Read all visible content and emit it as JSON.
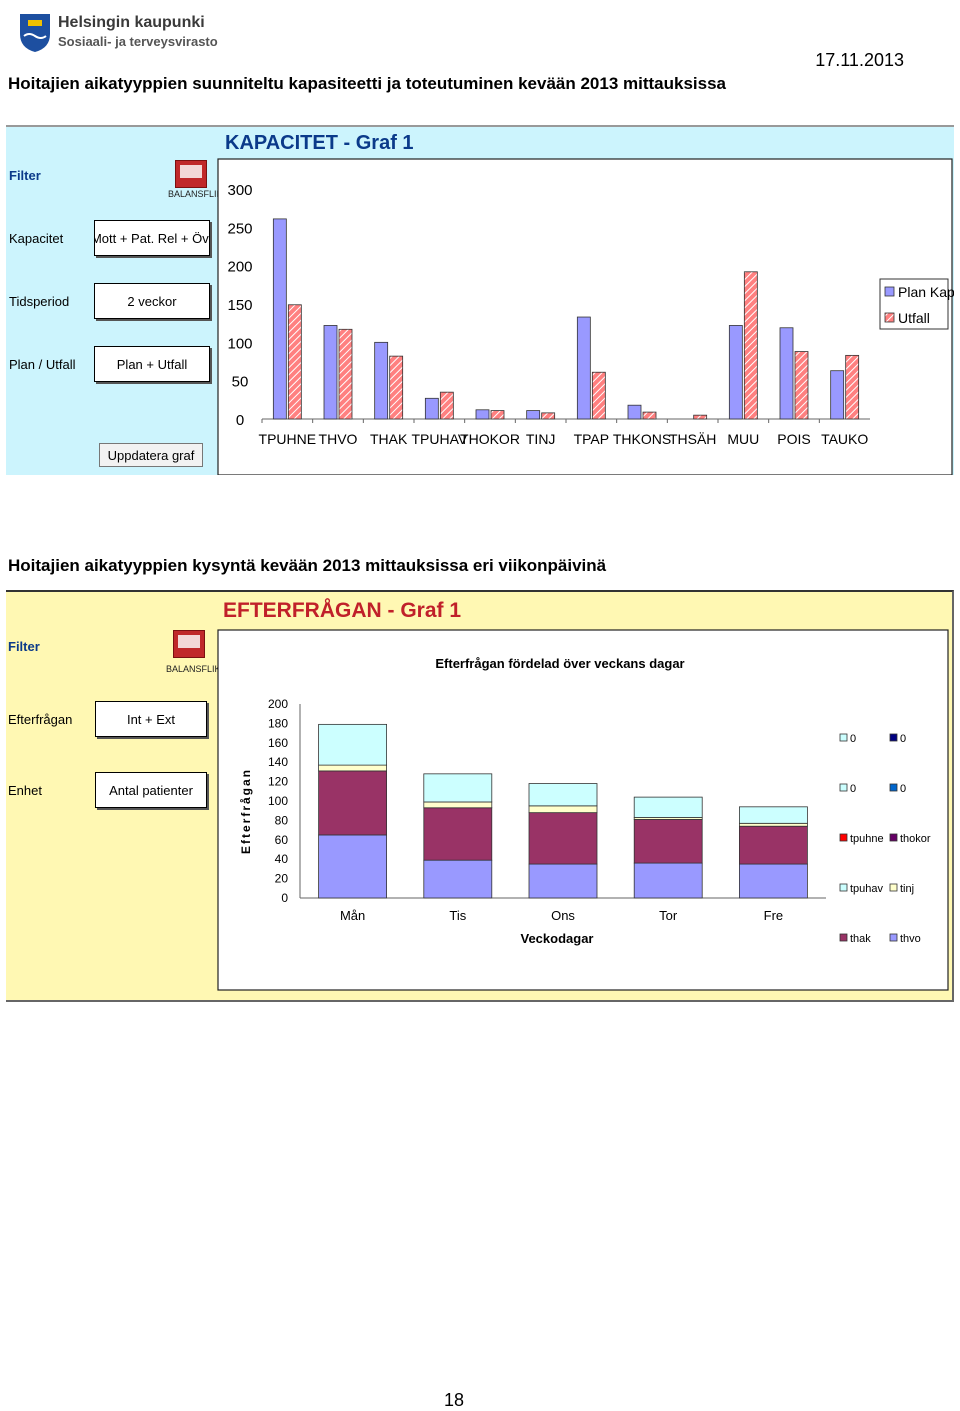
{
  "header": {
    "logo_line1": "Helsingin kaupunki",
    "logo_line2": "Sosiaali- ja terveysvirasto",
    "date": "17.11.2013",
    "title1": "Hoitajien aikatyyppien suunniteltu kapasiteetti ja toteutuminen kevään 2013 mittauksissa",
    "title2": "Hoitajien aikatyyppien kysyntä kevään 2013 mittauksissa eri viikonpäivinä"
  },
  "panel1": {
    "filter_label": "Filter",
    "balansflik": "BALANSFLIK",
    "rows": [
      {
        "label": "Kapacitet",
        "value": "Mott + Pat. Rel + Övr"
      },
      {
        "label": "Tidsperiod",
        "value": "2 veckor"
      },
      {
        "label": "Plan / Utfall",
        "value": "Plan + Utfall"
      }
    ],
    "update_button": "Uppdatera graf",
    "chart_title": "KAPACITET - Graf 1"
  },
  "panel2": {
    "filter_label": "Filter",
    "balansflik": "BALANSFLIK",
    "rows": [
      {
        "label": "Efterfrågan",
        "value": "Int + Ext"
      },
      {
        "label": "Enhet",
        "value": "Antal patienter"
      }
    ],
    "chart_title": "EFTERFRÅGAN - Graf 1"
  },
  "page_number": "18",
  "colors": {
    "plan_kap": "#9999ff",
    "utfall": "#ff8080",
    "panel1_bg": "#ccf4fd",
    "panel2_bg": "#fff8b3"
  },
  "chart_data": [
    {
      "type": "bar",
      "categories": [
        "TPUHNE",
        "THVO",
        "THAK",
        "TPUHAV",
        "THOKOR",
        "TINJ",
        "TPAP",
        "THKONS",
        "THSÄH",
        "MUU",
        "POIS",
        "TAUKO"
      ],
      "series": [
        {
          "name": "Plan Kap",
          "values": [
            261,
            122,
            100,
            27,
            12,
            11,
            133,
            18,
            0,
            122,
            119,
            63
          ]
        },
        {
          "name": "Utfall",
          "values": [
            149,
            117,
            82,
            35,
            11,
            8,
            61,
            9,
            5,
            192,
            88,
            83
          ]
        }
      ],
      "yticks": [
        "0",
        "50",
        "100",
        "150",
        "200",
        "250",
        "300"
      ],
      "ylim": [
        0,
        300
      ],
      "legend": "right"
    },
    {
      "type": "bar",
      "stacked": true,
      "title": "Efterfrågan fördelad över veckans dagar",
      "xlabel": "Veckodagar",
      "ylabel": "Efterfrågan",
      "categories": [
        "Mån",
        "Tis",
        "Ons",
        "Tor",
        "Fre"
      ],
      "yticks": [
        "0",
        "20",
        "40",
        "60",
        "80",
        "100",
        "120",
        "140",
        "160",
        "180",
        "200"
      ],
      "ylim": [
        0,
        200
      ],
      "series": [
        {
          "name": "thvo",
          "color": "#9999ff",
          "values": [
            65,
            39,
            35,
            36,
            35
          ]
        },
        {
          "name": "thak",
          "color": "#993366",
          "values": [
            66,
            54,
            53,
            45,
            39
          ]
        },
        {
          "name": "tinj",
          "color": "#ffffcc",
          "values": [
            6,
            6,
            7,
            2,
            3
          ]
        },
        {
          "name": "tpuhav",
          "color": "#ccffff",
          "values": [
            42,
            29,
            23,
            21,
            17
          ]
        }
      ],
      "legend": "right",
      "legend_entries": [
        {
          "value": "0",
          "color": "#ccffff"
        },
        {
          "value": "0",
          "color": "#000080"
        },
        {
          "value": "0",
          "color": "#ccffff"
        },
        {
          "value": "0",
          "color": "#0066cc"
        },
        {
          "value": "tpuhne",
          "color": "#ff0000"
        },
        {
          "value": "thokor",
          "color": "#660066"
        },
        {
          "value": "tpuhav",
          "color": "#ccffff"
        },
        {
          "value": "tinj",
          "color": "#ffffcc"
        },
        {
          "value": "thak",
          "color": "#993366"
        },
        {
          "value": "thvo",
          "color": "#9999ff"
        }
      ]
    }
  ]
}
